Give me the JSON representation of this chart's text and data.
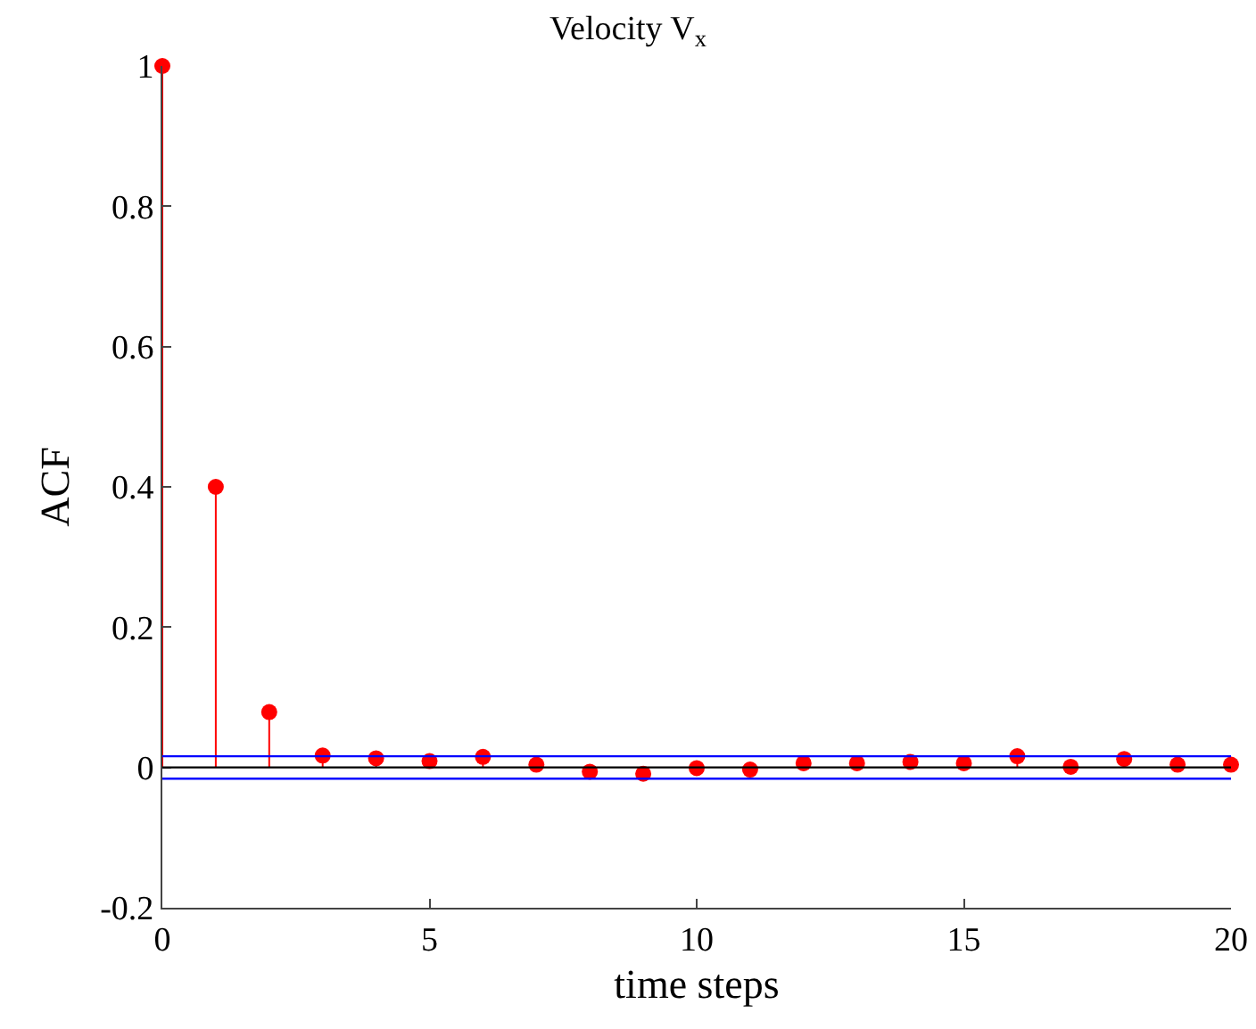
{
  "chart_data": {
    "type": "lollipop",
    "title": "Velocity V$_{x}$",
    "xlabel": "time steps",
    "ylabel": "ACF",
    "x": [
      0,
      1,
      2,
      3,
      4,
      5,
      6,
      7,
      8,
      9,
      10,
      11,
      12,
      13,
      14,
      15,
      16,
      17,
      18,
      19,
      20
    ],
    "values": [
      1,
      0.4,
      0.079,
      0.017,
      0.013,
      0.009,
      0.015,
      0.004,
      -0.006,
      -0.009,
      -0.001,
      -0.003,
      0.006,
      0.006,
      0.008,
      0.006,
      0.016,
      0.001,
      0.012,
      0.004,
      0.004
    ],
    "color": "#ff0000",
    "marker": "circle",
    "grid": false,
    "xlim": [
      0,
      20
    ],
    "xticks": [
      0,
      5,
      10,
      15,
      20
    ],
    "ylim": [
      -0.2,
      1
    ],
    "yticks": [
      {
        "value": -0.2,
        "label": "-0.2"
      },
      0,
      0.2,
      0.4,
      0.6,
      0.8,
      1
    ],
    "ref_lines": [
      {
        "axis": "y",
        "value": 0,
        "color": "#000000"
      },
      {
        "axis": "y",
        "value": 0.016,
        "color": "#0000ff"
      },
      {
        "axis": "y",
        "value": -0.016,
        "color": "#0000ff"
      }
    ]
  }
}
